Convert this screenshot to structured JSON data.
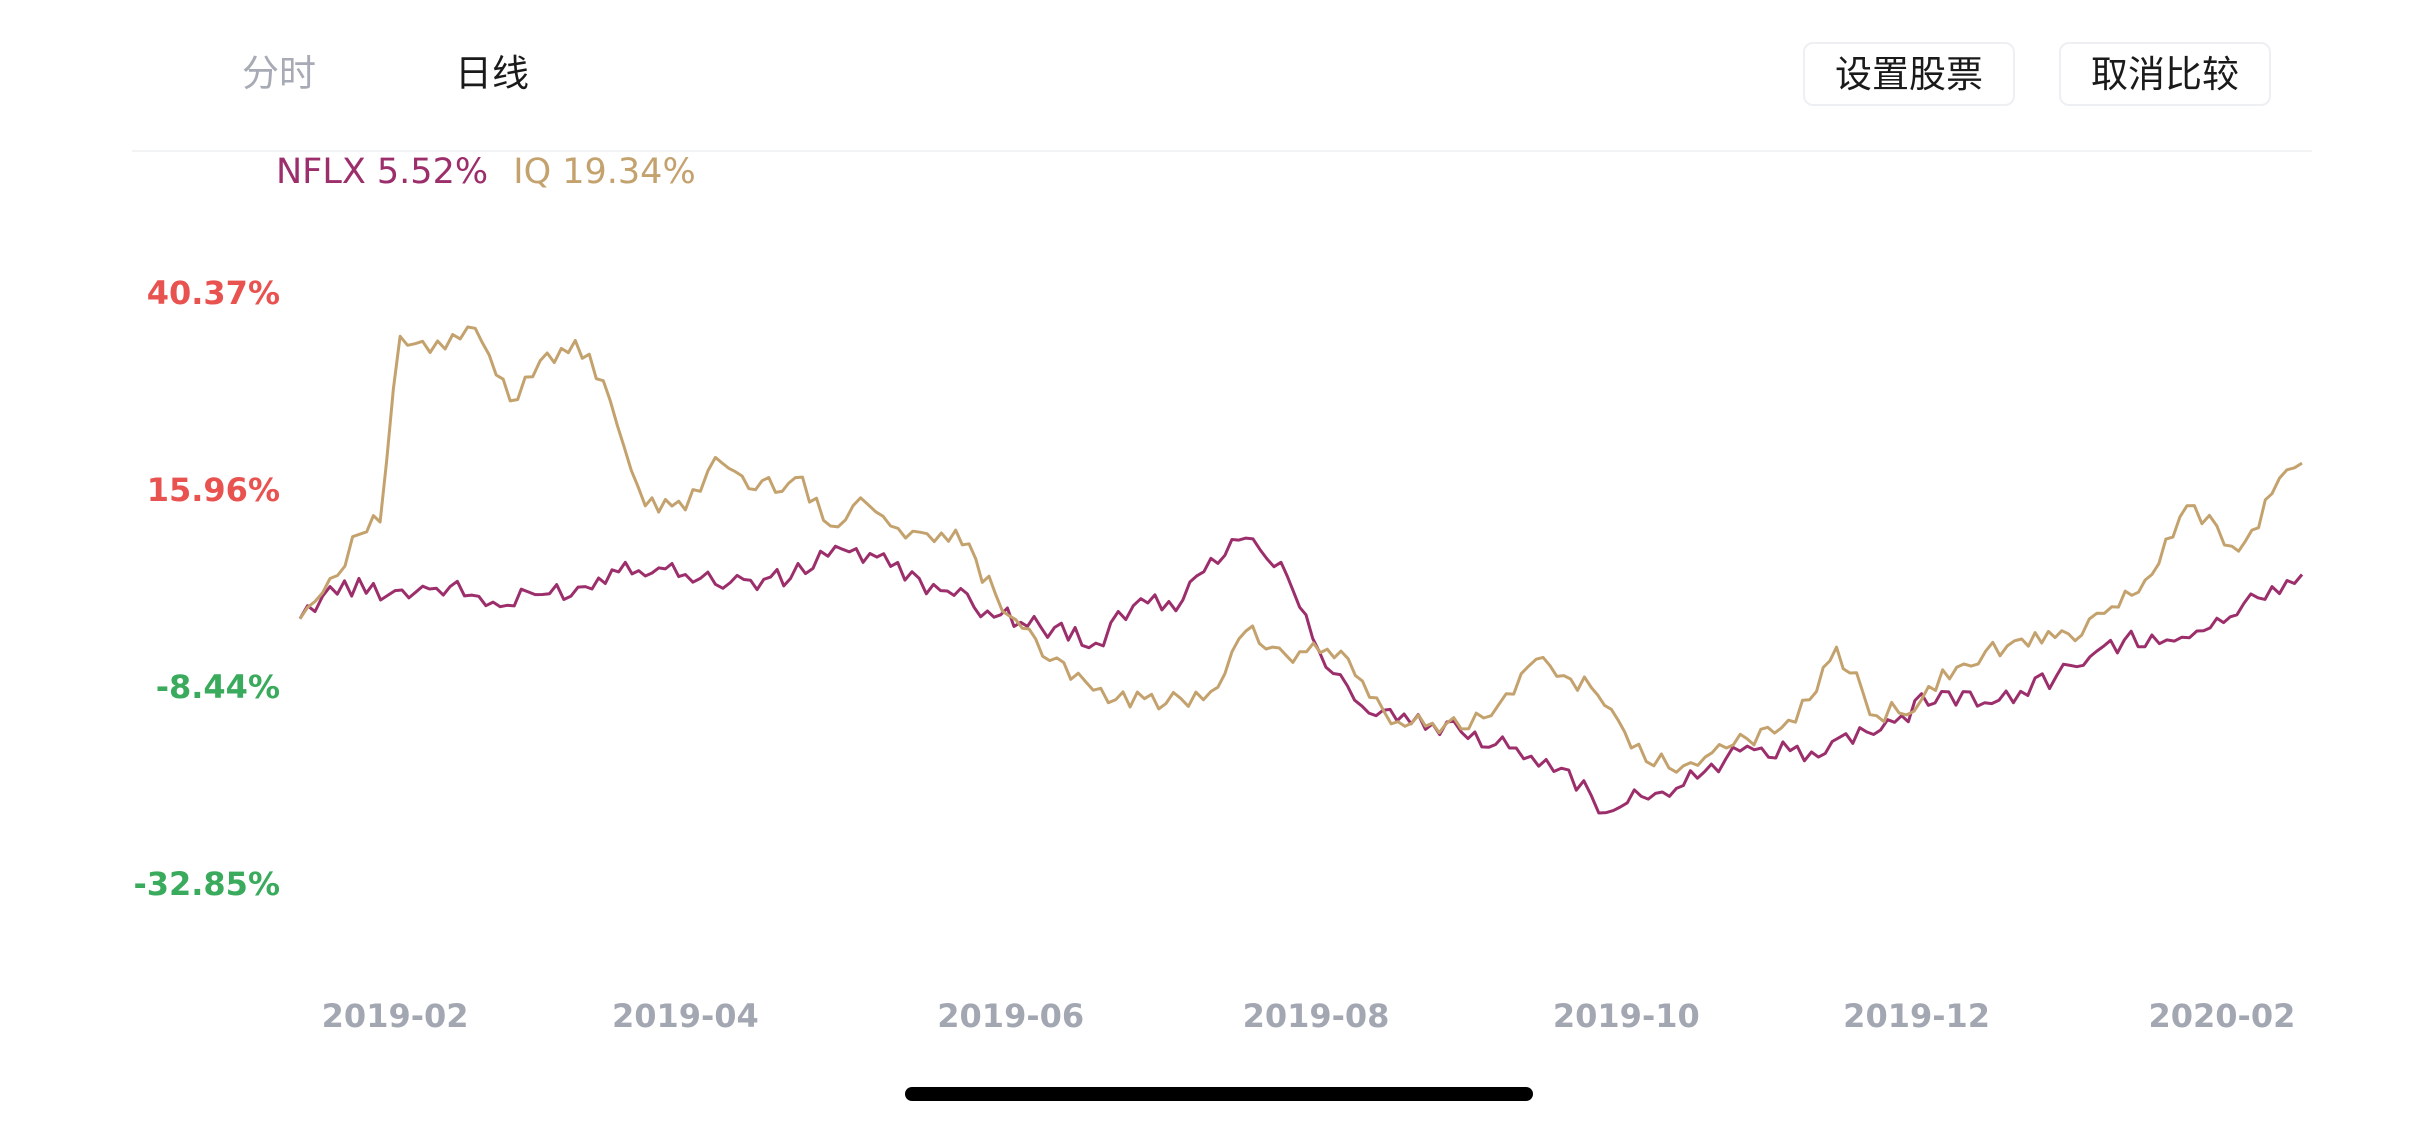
{
  "tabs": {
    "intraday": "分时",
    "daily": "日线"
  },
  "buttons": {
    "set_stock": "设置股票",
    "cancel_compare": "取消比较"
  },
  "legend": {
    "series_a": "NFLX 5.52%",
    "series_b": "IQ 19.34%"
  },
  "colors": {
    "series_a": "#9c2e6b",
    "series_b": "#c4a26e",
    "positive": "#e8524f",
    "negative": "#3aaa5c",
    "axis_text": "#a3a7b2"
  },
  "chart_data": {
    "type": "line",
    "y_unit": "%",
    "ylim": [
      -32.85,
      40.37
    ],
    "y_ticks": [
      {
        "value": 40.37,
        "label": "40.37%"
      },
      {
        "value": 15.96,
        "label": "15.96%"
      },
      {
        "value": -8.44,
        "label": "-8.44%"
      },
      {
        "value": -32.85,
        "label": "-32.85%"
      }
    ],
    "x_range": [
      "2019-01-16",
      "2020-02-20"
    ],
    "x_ticks": [
      {
        "date": "2019-02-04",
        "label": "2019-02"
      },
      {
        "date": "2019-04-03",
        "label": "2019-04"
      },
      {
        "date": "2019-06-07",
        "label": "2019-06"
      },
      {
        "date": "2019-08-07",
        "label": "2019-08"
      },
      {
        "date": "2019-10-08",
        "label": "2019-10"
      },
      {
        "date": "2019-12-05",
        "label": "2019-12"
      },
      {
        "date": "2020-02-04",
        "label": "2020-02"
      }
    ],
    "grid": false,
    "legend_position": "top-left",
    "series": [
      {
        "name": "NFLX",
        "color": "#9c2e6b",
        "points": [
          [
            "2019-01-16",
            0.0
          ],
          [
            "2019-01-22",
            4.0
          ],
          [
            "2019-02-04",
            3.5
          ],
          [
            "2019-02-15",
            4.0
          ],
          [
            "2019-02-25",
            1.5
          ],
          [
            "2019-03-04",
            3.0
          ],
          [
            "2019-03-14",
            4.0
          ],
          [
            "2019-03-22",
            7.0
          ],
          [
            "2019-04-03",
            5.5
          ],
          [
            "2019-04-12",
            4.5
          ],
          [
            "2019-04-24",
            5.0
          ],
          [
            "2019-05-03",
            9.0
          ],
          [
            "2019-05-14",
            6.5
          ],
          [
            "2019-05-24",
            3.5
          ],
          [
            "2019-06-05",
            0.5
          ],
          [
            "2019-06-13",
            -1.0
          ],
          [
            "2019-06-24",
            -3.0
          ],
          [
            "2019-07-03",
            2.5
          ],
          [
            "2019-07-10",
            1.0
          ],
          [
            "2019-07-17",
            7.5
          ],
          [
            "2019-07-24",
            10.0
          ],
          [
            "2019-07-31",
            7.0
          ],
          [
            "2019-08-05",
            0.5
          ],
          [
            "2019-08-09",
            -6.0
          ],
          [
            "2019-08-19",
            -12.0
          ],
          [
            "2019-08-26",
            -13.0
          ],
          [
            "2019-09-05",
            -14.0
          ],
          [
            "2019-09-16",
            -16.0
          ],
          [
            "2019-09-25",
            -18.5
          ],
          [
            "2019-10-04",
            -24.0
          ],
          [
            "2019-10-11",
            -22.0
          ],
          [
            "2019-10-18",
            -21.0
          ],
          [
            "2019-10-25",
            -18.0
          ],
          [
            "2019-11-04",
            -16.0
          ],
          [
            "2019-11-14",
            -16.5
          ],
          [
            "2019-11-25",
            -14.0
          ],
          [
            "2019-12-02",
            -12.0
          ],
          [
            "2019-12-10",
            -9.0
          ],
          [
            "2019-12-20",
            -10.5
          ],
          [
            "2020-01-02",
            -7.0
          ],
          [
            "2020-01-10",
            -4.0
          ],
          [
            "2020-01-21",
            -2.0
          ],
          [
            "2020-01-30",
            -1.5
          ],
          [
            "2020-02-07",
            0.5
          ],
          [
            "2020-02-14",
            4.0
          ],
          [
            "2020-02-20",
            5.5
          ]
        ]
      },
      {
        "name": "IQ",
        "color": "#c4a26e",
        "points": [
          [
            "2019-01-16",
            0.0
          ],
          [
            "2019-01-22",
            5.0
          ],
          [
            "2019-01-28",
            10.5
          ],
          [
            "2019-02-01",
            12.0
          ],
          [
            "2019-02-05",
            35.0
          ],
          [
            "2019-02-11",
            33.0
          ],
          [
            "2019-02-20",
            36.0
          ],
          [
            "2019-02-27",
            27.0
          ],
          [
            "2019-03-05",
            32.0
          ],
          [
            "2019-03-12",
            34.5
          ],
          [
            "2019-03-19",
            27.0
          ],
          [
            "2019-03-26",
            14.0
          ],
          [
            "2019-04-03",
            13.5
          ],
          [
            "2019-04-09",
            20.0
          ],
          [
            "2019-04-17",
            16.0
          ],
          [
            "2019-04-25",
            17.5
          ],
          [
            "2019-05-02",
            11.5
          ],
          [
            "2019-05-08",
            15.0
          ],
          [
            "2019-05-17",
            10.0
          ],
          [
            "2019-05-27",
            11.0
          ],
          [
            "2019-06-04",
            3.0
          ],
          [
            "2019-06-12",
            -2.5
          ],
          [
            "2019-06-19",
            -7.5
          ],
          [
            "2019-06-28",
            -10.0
          ],
          [
            "2019-07-08",
            -10.5
          ],
          [
            "2019-07-17",
            -9.0
          ],
          [
            "2019-07-24",
            -1.5
          ],
          [
            "2019-08-01",
            -4.5
          ],
          [
            "2019-08-12",
            -4.0
          ],
          [
            "2019-08-22",
            -13.0
          ],
          [
            "2019-09-02",
            -13.0
          ],
          [
            "2019-09-11",
            -12.0
          ],
          [
            "2019-09-20",
            -5.0
          ],
          [
            "2019-10-01",
            -8.5
          ],
          [
            "2019-10-09",
            -16.0
          ],
          [
            "2019-10-18",
            -19.0
          ],
          [
            "2019-10-28",
            -16.0
          ],
          [
            "2019-11-08",
            -13.5
          ],
          [
            "2019-11-15",
            -9.0
          ],
          [
            "2019-11-19",
            -3.5
          ],
          [
            "2019-11-27",
            -12.0
          ],
          [
            "2019-12-06",
            -10.0
          ],
          [
            "2019-12-13",
            -6.0
          ],
          [
            "2019-12-26",
            -2.5
          ],
          [
            "2020-01-07",
            -2.0
          ],
          [
            "2020-01-13",
            1.5
          ],
          [
            "2020-01-21",
            5.5
          ],
          [
            "2020-01-28",
            14.0
          ],
          [
            "2020-02-03",
            11.5
          ],
          [
            "2020-02-06",
            9.0
          ],
          [
            "2020-02-10",
            11.0
          ],
          [
            "2020-02-14",
            15.5
          ],
          [
            "2020-02-20",
            19.3
          ]
        ]
      }
    ]
  }
}
